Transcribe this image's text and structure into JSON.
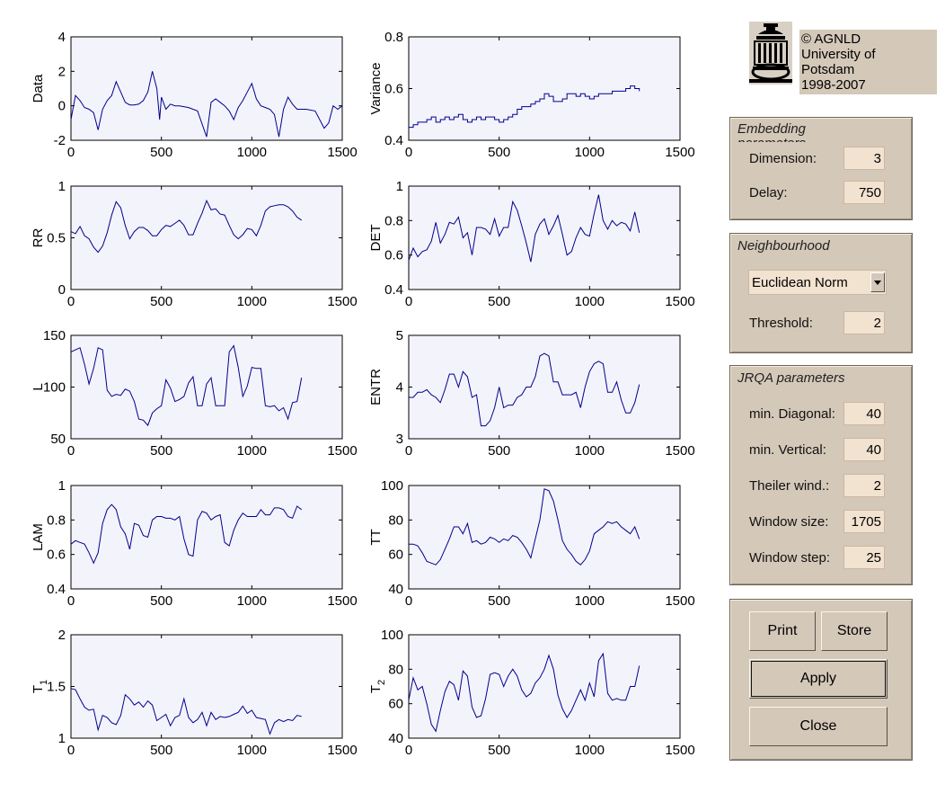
{
  "logo": {
    "lines": [
      "© AGNLD",
      "University of",
      "Potsdam",
      "1998-2007"
    ]
  },
  "embedding": {
    "title": "Embedding parameters",
    "dimension_label": "Dimension:",
    "dimension_value": "3",
    "delay_label": "Delay:",
    "delay_value": "750"
  },
  "neighbourhood": {
    "title": "Neighbourhood",
    "norm_value": "Euclidean Norm",
    "threshold_label": "Threshold:",
    "threshold_value": "2"
  },
  "jrqa": {
    "title": "JRQA parameters",
    "min_diagonal_label": "min. Diagonal:",
    "min_diagonal_value": "40",
    "min_vertical_label": "min. Vertical:",
    "min_vertical_value": "40",
    "theiler_label": "Theiler wind.:",
    "theiler_value": "2",
    "window_size_label": "Window size:",
    "window_size_value": "1705",
    "window_step_label": "Window step:",
    "window_step_value": "25"
  },
  "buttons": {
    "print": "Print",
    "store": "Store",
    "apply": "Apply",
    "close": "Close"
  },
  "colors": {
    "axes_background": "#f3f3fc",
    "line": "#00008b",
    "panel": "#d4c8b8"
  },
  "chart_data": [
    {
      "type": "line",
      "ylabel": "Data",
      "xlim": [
        0,
        1500
      ],
      "ylim": [
        -2,
        4
      ],
      "xticks": [
        "0",
        "500",
        "1000",
        "1500"
      ],
      "yticks": [
        "-2",
        "0",
        "2",
        "4"
      ],
      "x": [
        0,
        25,
        50,
        75,
        100,
        125,
        150,
        175,
        200,
        225,
        250,
        275,
        300,
        325,
        350,
        375,
        400,
        425,
        450,
        475,
        490,
        500,
        525,
        550,
        575,
        600,
        650,
        700,
        750,
        775,
        800,
        825,
        850,
        875,
        900,
        925,
        950,
        975,
        1000,
        1025,
        1050,
        1075,
        1100,
        1125,
        1150,
        1175,
        1200,
        1225,
        1250,
        1275,
        1300,
        1350,
        1400,
        1425,
        1450,
        1475,
        1500
      ],
      "y": [
        -0.8,
        0.6,
        0.3,
        -0.1,
        -0.2,
        -0.4,
        -1.4,
        -0.2,
        0.3,
        0.6,
        1.4,
        0.8,
        0.2,
        0.05,
        0.05,
        0.1,
        0.3,
        0.8,
        2.0,
        1.0,
        -0.8,
        0.5,
        -0.2,
        0.1,
        0.0,
        0.0,
        -0.1,
        -0.3,
        -1.8,
        0.2,
        0.4,
        0.2,
        0.0,
        -0.3,
        -0.8,
        -0.1,
        0.3,
        0.8,
        1.3,
        0.4,
        0.0,
        -0.1,
        -0.2,
        -0.5,
        -1.8,
        -0.2,
        0.5,
        0.1,
        -0.2,
        -0.2,
        -0.2,
        -0.3,
        -1.3,
        -1.0,
        0.0,
        -0.2,
        0.0
      ]
    },
    {
      "type": "line",
      "ylabel": "Variance",
      "xlim": [
        0,
        1500
      ],
      "ylim": [
        0.4,
        0.8
      ],
      "xticks": [
        "0",
        "500",
        "1000",
        "1500"
      ],
      "yticks": [
        "0.4",
        "0.6",
        "0.8"
      ],
      "step": true,
      "x": [
        0,
        25,
        50,
        75,
        100,
        125,
        150,
        175,
        200,
        225,
        250,
        275,
        300,
        325,
        350,
        375,
        400,
        425,
        450,
        475,
        500,
        525,
        550,
        575,
        600,
        625,
        650,
        675,
        700,
        725,
        750,
        775,
        800,
        825,
        850,
        875,
        900,
        925,
        950,
        975,
        1000,
        1025,
        1050,
        1075,
        1100,
        1125,
        1150,
        1175,
        1200,
        1225,
        1250,
        1275
      ],
      "y": [
        0.45,
        0.46,
        0.47,
        0.47,
        0.48,
        0.49,
        0.47,
        0.48,
        0.49,
        0.48,
        0.49,
        0.5,
        0.48,
        0.47,
        0.48,
        0.49,
        0.48,
        0.49,
        0.49,
        0.48,
        0.47,
        0.48,
        0.49,
        0.5,
        0.52,
        0.53,
        0.53,
        0.54,
        0.55,
        0.56,
        0.58,
        0.57,
        0.55,
        0.55,
        0.56,
        0.58,
        0.58,
        0.57,
        0.58,
        0.57,
        0.56,
        0.57,
        0.58,
        0.58,
        0.58,
        0.59,
        0.59,
        0.59,
        0.6,
        0.61,
        0.6,
        0.59
      ]
    },
    {
      "type": "line",
      "ylabel": "RR",
      "xlim": [
        0,
        1500
      ],
      "ylim": [
        0,
        1
      ],
      "xticks": [
        "0",
        "500",
        "1000",
        "1500"
      ],
      "yticks": [
        "0",
        "0.5",
        "1"
      ],
      "x": [
        0,
        25,
        50,
        75,
        100,
        125,
        150,
        175,
        200,
        225,
        250,
        275,
        300,
        325,
        350,
        375,
        400,
        425,
        450,
        475,
        500,
        525,
        550,
        575,
        600,
        625,
        650,
        675,
        700,
        725,
        750,
        775,
        800,
        825,
        850,
        875,
        900,
        925,
        950,
        975,
        1000,
        1025,
        1050,
        1075,
        1100,
        1125,
        1150,
        1175,
        1200,
        1225,
        1250,
        1275
      ],
      "y": [
        0.56,
        0.54,
        0.61,
        0.52,
        0.49,
        0.41,
        0.36,
        0.42,
        0.55,
        0.72,
        0.85,
        0.79,
        0.62,
        0.49,
        0.56,
        0.6,
        0.6,
        0.57,
        0.52,
        0.52,
        0.58,
        0.62,
        0.61,
        0.64,
        0.67,
        0.62,
        0.53,
        0.53,
        0.64,
        0.74,
        0.86,
        0.77,
        0.78,
        0.73,
        0.72,
        0.62,
        0.53,
        0.49,
        0.53,
        0.59,
        0.58,
        0.52,
        0.62,
        0.76,
        0.8,
        0.81,
        0.82,
        0.82,
        0.8,
        0.76,
        0.7,
        0.67
      ]
    },
    {
      "type": "line",
      "ylabel": "DET",
      "xlim": [
        0,
        1500
      ],
      "ylim": [
        0.4,
        1
      ],
      "xticks": [
        "0",
        "500",
        "1000",
        "1500"
      ],
      "yticks": [
        "0.4",
        "0.6",
        "0.8",
        "1"
      ],
      "x": [
        0,
        25,
        50,
        75,
        100,
        125,
        150,
        175,
        200,
        225,
        250,
        275,
        300,
        325,
        350,
        375,
        400,
        425,
        450,
        475,
        500,
        525,
        550,
        575,
        600,
        625,
        650,
        675,
        700,
        725,
        750,
        775,
        800,
        825,
        850,
        875,
        900,
        925,
        950,
        975,
        1000,
        1025,
        1050,
        1075,
        1100,
        1125,
        1150,
        1175,
        1200,
        1225,
        1250,
        1275
      ],
      "y": [
        0.57,
        0.64,
        0.59,
        0.62,
        0.63,
        0.68,
        0.79,
        0.67,
        0.72,
        0.79,
        0.78,
        0.82,
        0.7,
        0.73,
        0.6,
        0.76,
        0.76,
        0.75,
        0.72,
        0.81,
        0.71,
        0.76,
        0.76,
        0.91,
        0.86,
        0.77,
        0.67,
        0.56,
        0.72,
        0.78,
        0.81,
        0.72,
        0.77,
        0.83,
        0.72,
        0.6,
        0.62,
        0.7,
        0.76,
        0.72,
        0.71,
        0.84,
        0.95,
        0.8,
        0.75,
        0.8,
        0.77,
        0.79,
        0.78,
        0.74,
        0.85,
        0.73
      ]
    },
    {
      "type": "line",
      "ylabel": "L",
      "xlim": [
        0,
        1500
      ],
      "ylim": [
        50,
        150
      ],
      "xticks": [
        "0",
        "500",
        "1000",
        "1500"
      ],
      "yticks": [
        "50",
        "100",
        "150"
      ],
      "x": [
        0,
        25,
        50,
        75,
        100,
        125,
        150,
        175,
        200,
        225,
        250,
        275,
        300,
        325,
        350,
        375,
        400,
        425,
        450,
        475,
        500,
        525,
        550,
        575,
        600,
        625,
        650,
        675,
        700,
        725,
        750,
        775,
        800,
        825,
        850,
        875,
        900,
        925,
        950,
        975,
        1000,
        1025,
        1050,
        1075,
        1100,
        1125,
        1150,
        1175,
        1200,
        1225,
        1250,
        1275
      ],
      "y": [
        134,
        136,
        138,
        122,
        103,
        118,
        138,
        136,
        97,
        91,
        93,
        92,
        98,
        96,
        86,
        69,
        68,
        63,
        75,
        79,
        82,
        107,
        99,
        86,
        88,
        91,
        104,
        110,
        82,
        82,
        103,
        109,
        82,
        82,
        82,
        134,
        140,
        119,
        91,
        101,
        119,
        118,
        118,
        82,
        81,
        82,
        77,
        80,
        69,
        85,
        86,
        109
      ]
    },
    {
      "type": "line",
      "ylabel": "ENTR",
      "xlim": [
        0,
        1500
      ],
      "ylim": [
        3,
        5
      ],
      "xticks": [
        "0",
        "500",
        "1000",
        "1500"
      ],
      "yticks": [
        "3",
        "4",
        "5"
      ],
      "x": [
        0,
        25,
        50,
        75,
        100,
        125,
        150,
        175,
        200,
        225,
        250,
        275,
        300,
        325,
        350,
        375,
        400,
        425,
        450,
        475,
        500,
        525,
        550,
        575,
        600,
        625,
        650,
        675,
        700,
        725,
        750,
        775,
        800,
        825,
        850,
        875,
        900,
        925,
        950,
        975,
        1000,
        1025,
        1050,
        1075,
        1100,
        1125,
        1150,
        1175,
        1200,
        1225,
        1250,
        1275
      ],
      "y": [
        3.8,
        3.8,
        3.9,
        3.9,
        3.95,
        3.85,
        3.8,
        3.7,
        3.95,
        4.25,
        4.25,
        4.0,
        4.3,
        4.2,
        3.8,
        3.85,
        3.25,
        3.25,
        3.35,
        3.6,
        4.0,
        3.6,
        3.65,
        3.65,
        3.8,
        3.85,
        4.0,
        4.0,
        4.2,
        4.6,
        4.65,
        4.6,
        4.1,
        4.1,
        3.85,
        3.85,
        3.85,
        3.9,
        3.6,
        4.0,
        4.3,
        4.45,
        4.5,
        4.45,
        3.9,
        3.9,
        4.1,
        3.75,
        3.5,
        3.5,
        3.7,
        4.05
      ]
    },
    {
      "type": "line",
      "ylabel": "LAM",
      "xlim": [
        0,
        1500
      ],
      "ylim": [
        0.4,
        1
      ],
      "xticks": [
        "0",
        "500",
        "1000",
        "1500"
      ],
      "yticks": [
        "0.4",
        "0.6",
        "0.8",
        "1"
      ],
      "x": [
        0,
        25,
        50,
        75,
        100,
        125,
        150,
        175,
        200,
        225,
        250,
        275,
        300,
        325,
        350,
        375,
        400,
        425,
        450,
        475,
        500,
        525,
        550,
        575,
        600,
        625,
        650,
        675,
        700,
        725,
        750,
        775,
        800,
        825,
        850,
        875,
        900,
        925,
        950,
        975,
        1000,
        1025,
        1050,
        1075,
        1100,
        1125,
        1150,
        1175,
        1200,
        1225,
        1250,
        1275
      ],
      "y": [
        0.66,
        0.68,
        0.67,
        0.66,
        0.61,
        0.55,
        0.61,
        0.78,
        0.86,
        0.89,
        0.86,
        0.76,
        0.72,
        0.63,
        0.78,
        0.77,
        0.71,
        0.7,
        0.8,
        0.82,
        0.82,
        0.81,
        0.81,
        0.8,
        0.82,
        0.69,
        0.6,
        0.59,
        0.8,
        0.85,
        0.84,
        0.8,
        0.82,
        0.83,
        0.67,
        0.65,
        0.74,
        0.8,
        0.84,
        0.82,
        0.82,
        0.82,
        0.86,
        0.83,
        0.83,
        0.87,
        0.87,
        0.86,
        0.82,
        0.81,
        0.88,
        0.86
      ]
    },
    {
      "type": "line",
      "ylabel": "TT",
      "xlim": [
        0,
        1500
      ],
      "ylim": [
        40,
        100
      ],
      "xticks": [
        "0",
        "500",
        "1000",
        "1500"
      ],
      "yticks": [
        "40",
        "60",
        "80",
        "100"
      ],
      "x": [
        0,
        25,
        50,
        75,
        100,
        125,
        150,
        175,
        200,
        225,
        250,
        275,
        300,
        325,
        350,
        375,
        400,
        425,
        450,
        475,
        500,
        525,
        550,
        575,
        600,
        625,
        650,
        675,
        700,
        725,
        750,
        775,
        800,
        825,
        850,
        875,
        900,
        925,
        950,
        975,
        1000,
        1025,
        1050,
        1075,
        1100,
        1125,
        1150,
        1175,
        1200,
        1225,
        1250,
        1275
      ],
      "y": [
        66,
        66,
        65,
        61,
        56,
        55,
        54,
        57,
        63,
        69,
        76,
        76,
        72,
        78,
        67,
        68,
        66,
        67,
        70,
        69,
        67,
        69,
        68,
        71,
        70,
        67,
        63,
        58,
        69,
        80,
        98,
        97,
        91,
        80,
        68,
        63,
        60,
        56,
        54,
        57,
        62,
        72,
        74,
        76,
        79,
        78,
        79,
        76,
        74,
        72,
        76,
        69
      ]
    },
    {
      "type": "line",
      "ylabel": "T1",
      "xlim": [
        0,
        1500
      ],
      "ylim": [
        1,
        2
      ],
      "xticks": [
        "0",
        "500",
        "1000",
        "1500"
      ],
      "yticks": [
        "1",
        "1.5",
        "2"
      ],
      "x": [
        0,
        25,
        50,
        75,
        100,
        125,
        150,
        175,
        200,
        225,
        250,
        275,
        300,
        325,
        350,
        375,
        400,
        425,
        450,
        475,
        500,
        525,
        550,
        575,
        600,
        625,
        650,
        675,
        700,
        725,
        750,
        775,
        800,
        825,
        850,
        875,
        900,
        925,
        950,
        975,
        1000,
        1025,
        1050,
        1075,
        1100,
        1125,
        1150,
        1175,
        1200,
        1225,
        1250,
        1275
      ],
      "y": [
        1.48,
        1.47,
        1.38,
        1.3,
        1.27,
        1.28,
        1.08,
        1.22,
        1.2,
        1.15,
        1.13,
        1.22,
        1.42,
        1.38,
        1.32,
        1.35,
        1.3,
        1.36,
        1.32,
        1.17,
        1.2,
        1.23,
        1.12,
        1.2,
        1.22,
        1.38,
        1.2,
        1.15,
        1.18,
        1.25,
        1.12,
        1.25,
        1.18,
        1.21,
        1.2,
        1.21,
        1.23,
        1.25,
        1.31,
        1.24,
        1.27,
        1.2,
        1.19,
        1.18,
        1.04,
        1.15,
        1.18,
        1.16,
        1.18,
        1.17,
        1.22,
        1.21
      ]
    },
    {
      "type": "line",
      "ylabel": "T2",
      "xlim": [
        0,
        1500
      ],
      "ylim": [
        40,
        100
      ],
      "xticks": [
        "0",
        "500",
        "1000",
        "1500"
      ],
      "yticks": [
        "40",
        "60",
        "80",
        "100"
      ],
      "x": [
        0,
        25,
        50,
        75,
        100,
        125,
        150,
        175,
        200,
        225,
        250,
        275,
        300,
        325,
        350,
        375,
        400,
        425,
        450,
        475,
        500,
        525,
        550,
        575,
        600,
        625,
        650,
        675,
        700,
        725,
        750,
        775,
        800,
        825,
        850,
        875,
        900,
        925,
        950,
        975,
        1000,
        1025,
        1050,
        1075,
        1100,
        1125,
        1150,
        1175,
        1200,
        1225,
        1250,
        1275
      ],
      "y": [
        62,
        75,
        68,
        70,
        60,
        48,
        44,
        56,
        67,
        73,
        71,
        62,
        79,
        76,
        58,
        52,
        53,
        63,
        77,
        78,
        77,
        70,
        76,
        80,
        76,
        68,
        64,
        66,
        72,
        75,
        80,
        88,
        80,
        65,
        57,
        52,
        56,
        62,
        68,
        62,
        72,
        64,
        85,
        89,
        66,
        62,
        63,
        62,
        62,
        70,
        70,
        82
      ]
    }
  ]
}
